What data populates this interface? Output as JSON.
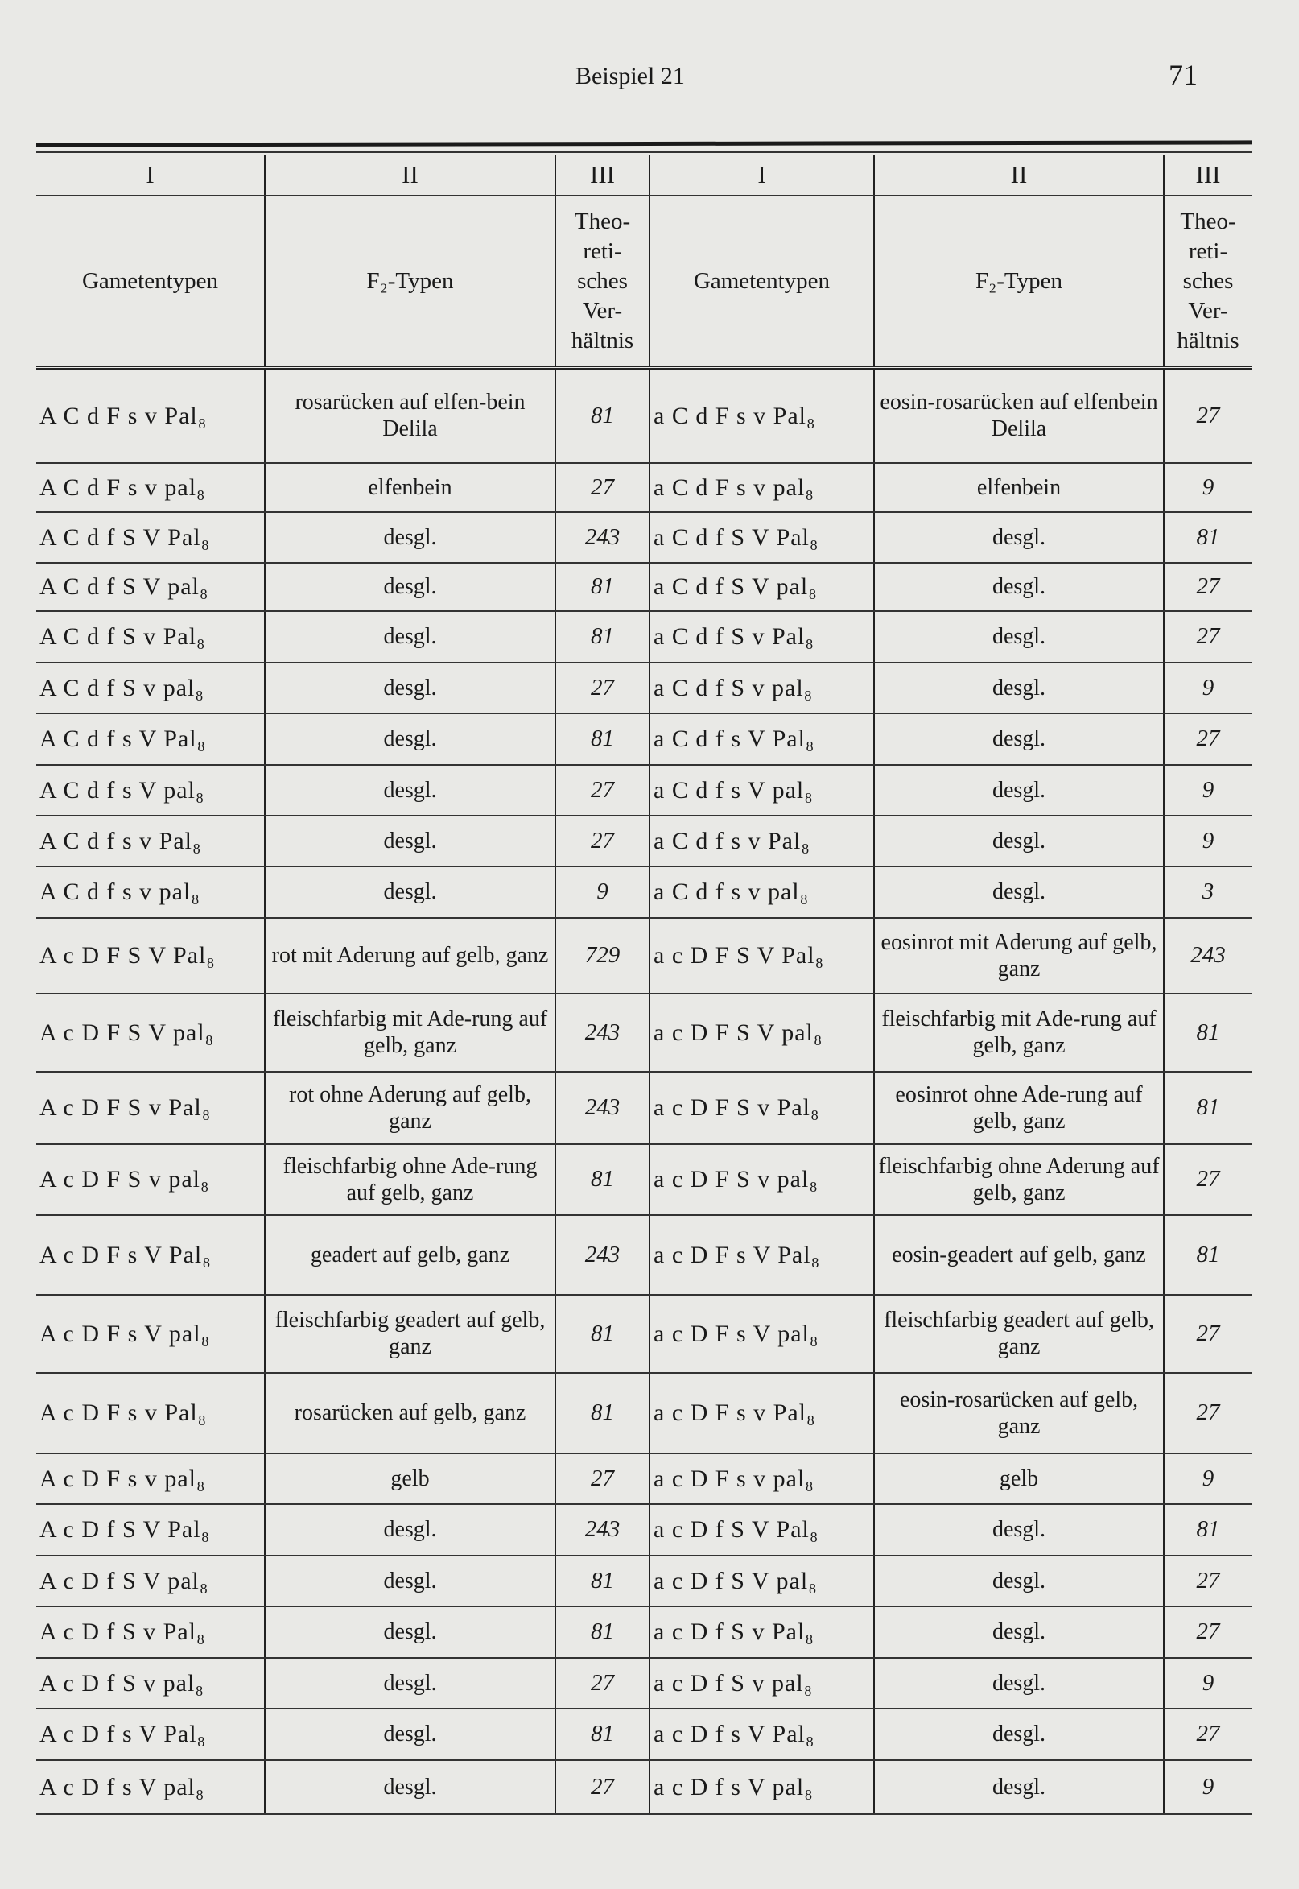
{
  "page_header": {
    "title": "Beispiel 21",
    "page_number": "71"
  },
  "table": {
    "roman_headers": [
      "I",
      "II",
      "III",
      "I",
      "II",
      "III"
    ],
    "sub_headers": [
      "Gametentypen",
      "F₂-Typen",
      "Theo-\nreti-\nsches\nVer-\nhältnis",
      "Gametentypen",
      "F₂-Typen",
      "Theo-\nreti-\nsches\nVer-\nhältnis"
    ],
    "rows": [
      [
        "A C d F s v Pal₈",
        "rosarücken auf elfen-bein Delila",
        "81",
        "a C d F s v Pal₈",
        "eosin-rosarücken auf elfenbein Delila",
        "27"
      ],
      [
        "A C d F s v pal₈",
        "elfenbein",
        "27",
        "a C d F s v pal₈",
        "elfenbein",
        "9"
      ],
      [
        "A C d f S V Pal₈",
        "desgl.",
        "243",
        "a C d f S V Pal₈",
        "desgl.",
        "81"
      ],
      [
        "A C d f S V pal₈",
        "desgl.",
        "81",
        "a C d f S V pal₈",
        "desgl.",
        "27"
      ],
      [
        "A C d f S v Pal₈",
        "desgl.",
        "81",
        "a C d f S v Pal₈",
        "desgl.",
        "27"
      ],
      [
        "A C d f S v pal₈",
        "desgl.",
        "27",
        "a C d f S v pal₈",
        "desgl.",
        "9"
      ],
      [
        "A C d f s V Pal₈",
        "desgl.",
        "81",
        "a C d f s V Pal₈",
        "desgl.",
        "27"
      ],
      [
        "A C d f s V pal₈",
        "desgl.",
        "27",
        "a C d f s V pal₈",
        "desgl.",
        "9"
      ],
      [
        "A C d f s v Pal₈",
        "desgl.",
        "27",
        "a C d f s v Pal₈",
        "desgl.",
        "9"
      ],
      [
        "A C d f s v pal₈",
        "desgl.",
        "9",
        "a C d f s v pal₈",
        "desgl.",
        "3"
      ],
      [
        "A c D F S V Pal₈",
        "rot mit Aderung auf gelb, ganz",
        "729",
        "a c D F S V Pal₈",
        "eosinrot mit Aderung auf gelb, ganz",
        "243"
      ],
      [
        "A c D F S V pal₈",
        "fleischfarbig mit Ade-rung auf gelb, ganz",
        "243",
        "a c D F S V pal₈",
        "fleischfarbig mit Ade-rung auf gelb, ganz",
        "81"
      ],
      [
        "A c D F S v Pal₈",
        "rot ohne Aderung auf gelb, ganz",
        "243",
        "a c D F S v Pal₈",
        "eosinrot ohne Ade-rung auf gelb, ganz",
        "81"
      ],
      [
        "A c D F S v pal₈",
        "fleischfarbig ohne Ade-rung auf gelb, ganz",
        "81",
        "a c D F S v pal₈",
        "fleischfarbig ohne Aderung auf gelb, ganz",
        "27"
      ],
      [
        "A c D F s V Pal₈",
        "geadert auf gelb, ganz",
        "243",
        "a c D F s V Pal₈",
        "eosin-geadert auf gelb, ganz",
        "81"
      ],
      [
        "A c D F s V pal₈",
        "fleischfarbig geadert auf gelb, ganz",
        "81",
        "a c D F s V pal₈",
        "fleischfarbig geadert auf gelb, ganz",
        "27"
      ],
      [
        "A c D F s v Pal₈",
        "rosarücken auf gelb, ganz",
        "81",
        "a c D F s v Pal₈",
        "eosin-rosarücken auf gelb, ganz",
        "27"
      ],
      [
        "A c D F s v pal₈",
        "gelb",
        "27",
        "a c D F s v pal₈",
        "gelb",
        "9"
      ],
      [
        "A c D f S V Pal₈",
        "desgl.",
        "243",
        "a c D f S V Pal₈",
        "desgl.",
        "81"
      ],
      [
        "A c D f S V pal₈",
        "desgl.",
        "81",
        "a c D f S V pal₈",
        "desgl.",
        "27"
      ],
      [
        "A c D f S v Pal₈",
        "desgl.",
        "81",
        "a c D f S v Pal₈",
        "desgl.",
        "27"
      ],
      [
        "A c D f S v pal₈",
        "desgl.",
        "27",
        "a c D f S v pal₈",
        "desgl.",
        "9"
      ],
      [
        "A c D f s V Pal₈",
        "desgl.",
        "81",
        "a c D f s V Pal₈",
        "desgl.",
        "27"
      ],
      [
        "A c D f s V pal₈",
        "desgl.",
        "27",
        "a c D f s V pal₈",
        "desgl.",
        "9"
      ]
    ]
  }
}
